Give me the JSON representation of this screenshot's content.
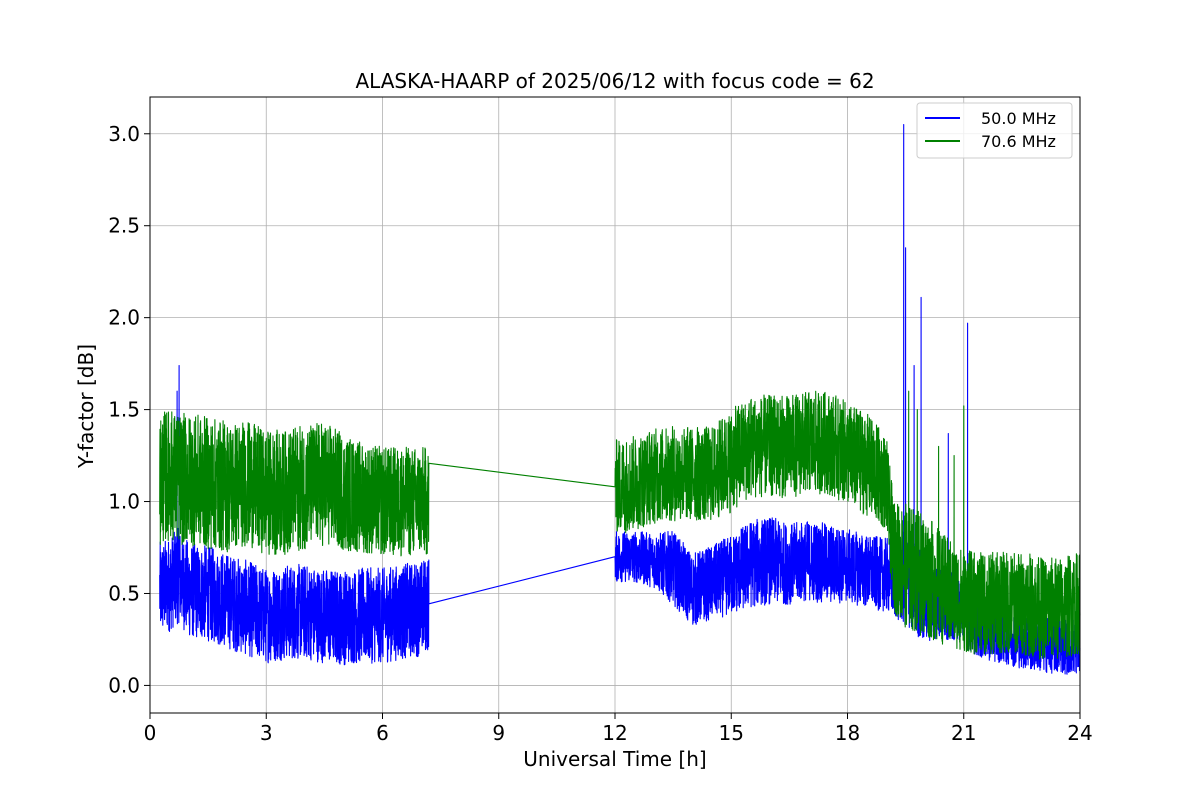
{
  "chart_data": {
    "type": "line",
    "title": "ALASKA-HAARP of 2025/06/12 with focus code = 62",
    "xlabel": "Universal Time [h]",
    "ylabel": "Y-factor [dB]",
    "xlim": [
      0,
      24
    ],
    "ylim": [
      -0.15,
      3.2
    ],
    "xticks": [
      0,
      3,
      6,
      9,
      12,
      15,
      18,
      21,
      24
    ],
    "xtick_labels": [
      "0",
      "3",
      "6",
      "9",
      "12",
      "15",
      "18",
      "21",
      "24"
    ],
    "yticks": [
      0.0,
      0.5,
      1.0,
      1.5,
      2.0,
      2.5,
      3.0
    ],
    "ytick_labels": [
      "0.0",
      "0.5",
      "1.0",
      "1.5",
      "2.0",
      "2.5",
      "3.0"
    ],
    "grid": true,
    "legend_position": "top-right",
    "series": [
      {
        "name": "50.0 MHz",
        "color": "#0000ff",
        "x": [
          0.25,
          0.5,
          0.75,
          1.0,
          1.5,
          2.0,
          2.5,
          3.0,
          3.5,
          4.0,
          4.5,
          5.0,
          5.5,
          6.0,
          6.5,
          7.0,
          7.2,
          12.0,
          12.5,
          13.0,
          13.5,
          14.0,
          14.5,
          15.0,
          15.5,
          16.0,
          16.5,
          17.0,
          17.5,
          18.0,
          18.5,
          19.0,
          19.45,
          19.7,
          19.9,
          20.5,
          21.0,
          21.1,
          21.5,
          22.0,
          22.5,
          23.0,
          23.5,
          24.0
        ],
        "y": [
          0.52,
          0.55,
          0.6,
          0.52,
          0.5,
          0.46,
          0.42,
          0.38,
          0.4,
          0.4,
          0.38,
          0.37,
          0.38,
          0.38,
          0.4,
          0.42,
          0.45,
          0.7,
          0.7,
          0.68,
          0.64,
          0.52,
          0.56,
          0.6,
          0.66,
          0.68,
          0.66,
          0.68,
          0.66,
          0.65,
          0.62,
          0.6,
          0.58,
          0.55,
          0.5,
          0.45,
          0.4,
          0.35,
          0.3,
          0.28,
          0.25,
          0.23,
          0.22,
          0.22
        ],
        "noise": [
          0.26,
          0.26,
          0.26,
          0.26,
          0.26,
          0.26,
          0.26,
          0.26,
          0.26,
          0.26,
          0.26,
          0.26,
          0.26,
          0.26,
          0.26,
          0.26,
          0.26,
          0.14,
          0.14,
          0.15,
          0.2,
          0.2,
          0.2,
          0.22,
          0.24,
          0.24,
          0.22,
          0.22,
          0.22,
          0.2,
          0.2,
          0.2,
          0.26,
          0.26,
          0.26,
          0.2,
          0.16,
          0.16,
          0.16,
          0.16,
          0.16,
          0.16,
          0.16,
          0.16
        ],
        "spikes": [
          [
            0.75,
            1.74
          ],
          [
            0.7,
            1.6
          ],
          [
            19.45,
            3.05
          ],
          [
            19.5,
            2.38
          ],
          [
            19.72,
            1.74
          ],
          [
            19.9,
            2.11
          ],
          [
            20.6,
            1.37
          ],
          [
            21.1,
            1.97
          ]
        ],
        "gaps": [
          [
            7.2,
            12.0
          ]
        ]
      },
      {
        "name": "70.6 MHz",
        "color": "#008000",
        "x": [
          0.25,
          0.5,
          0.75,
          1.0,
          1.5,
          2.0,
          2.5,
          3.0,
          3.5,
          4.0,
          4.5,
          5.0,
          5.5,
          6.0,
          6.5,
          7.0,
          7.2,
          12.0,
          12.5,
          13.0,
          13.5,
          14.0,
          14.5,
          15.0,
          15.5,
          16.0,
          16.5,
          17.0,
          17.5,
          18.0,
          18.5,
          19.0,
          19.2,
          19.5,
          20.0,
          20.5,
          21.0,
          21.5,
          22.0,
          22.5,
          23.0,
          23.5,
          24.0
        ],
        "y": [
          1.12,
          1.15,
          1.12,
          1.12,
          1.1,
          1.08,
          1.1,
          1.05,
          1.05,
          1.08,
          1.1,
          1.05,
          1.02,
          1.0,
          1.0,
          1.0,
          1.0,
          1.08,
          1.1,
          1.14,
          1.15,
          1.15,
          1.15,
          1.22,
          1.3,
          1.3,
          1.3,
          1.32,
          1.32,
          1.26,
          1.2,
          1.1,
          0.7,
          0.65,
          0.6,
          0.52,
          0.46,
          0.44,
          0.45,
          0.45,
          0.42,
          0.42,
          0.45
        ],
        "noise": [
          0.36,
          0.36,
          0.36,
          0.36,
          0.36,
          0.36,
          0.34,
          0.34,
          0.34,
          0.34,
          0.34,
          0.32,
          0.3,
          0.3,
          0.3,
          0.3,
          0.3,
          0.26,
          0.26,
          0.26,
          0.26,
          0.26,
          0.26,
          0.28,
          0.28,
          0.28,
          0.28,
          0.28,
          0.28,
          0.28,
          0.28,
          0.26,
          0.3,
          0.34,
          0.34,
          0.3,
          0.28,
          0.28,
          0.28,
          0.28,
          0.28,
          0.28,
          0.28
        ],
        "spikes": [
          [
            19.58,
            1.6
          ],
          [
            19.8,
            1.5
          ],
          [
            20.35,
            1.3
          ],
          [
            20.75,
            1.25
          ],
          [
            21.0,
            1.52
          ]
        ],
        "gaps": [
          [
            7.2,
            12.0
          ]
        ]
      }
    ]
  }
}
